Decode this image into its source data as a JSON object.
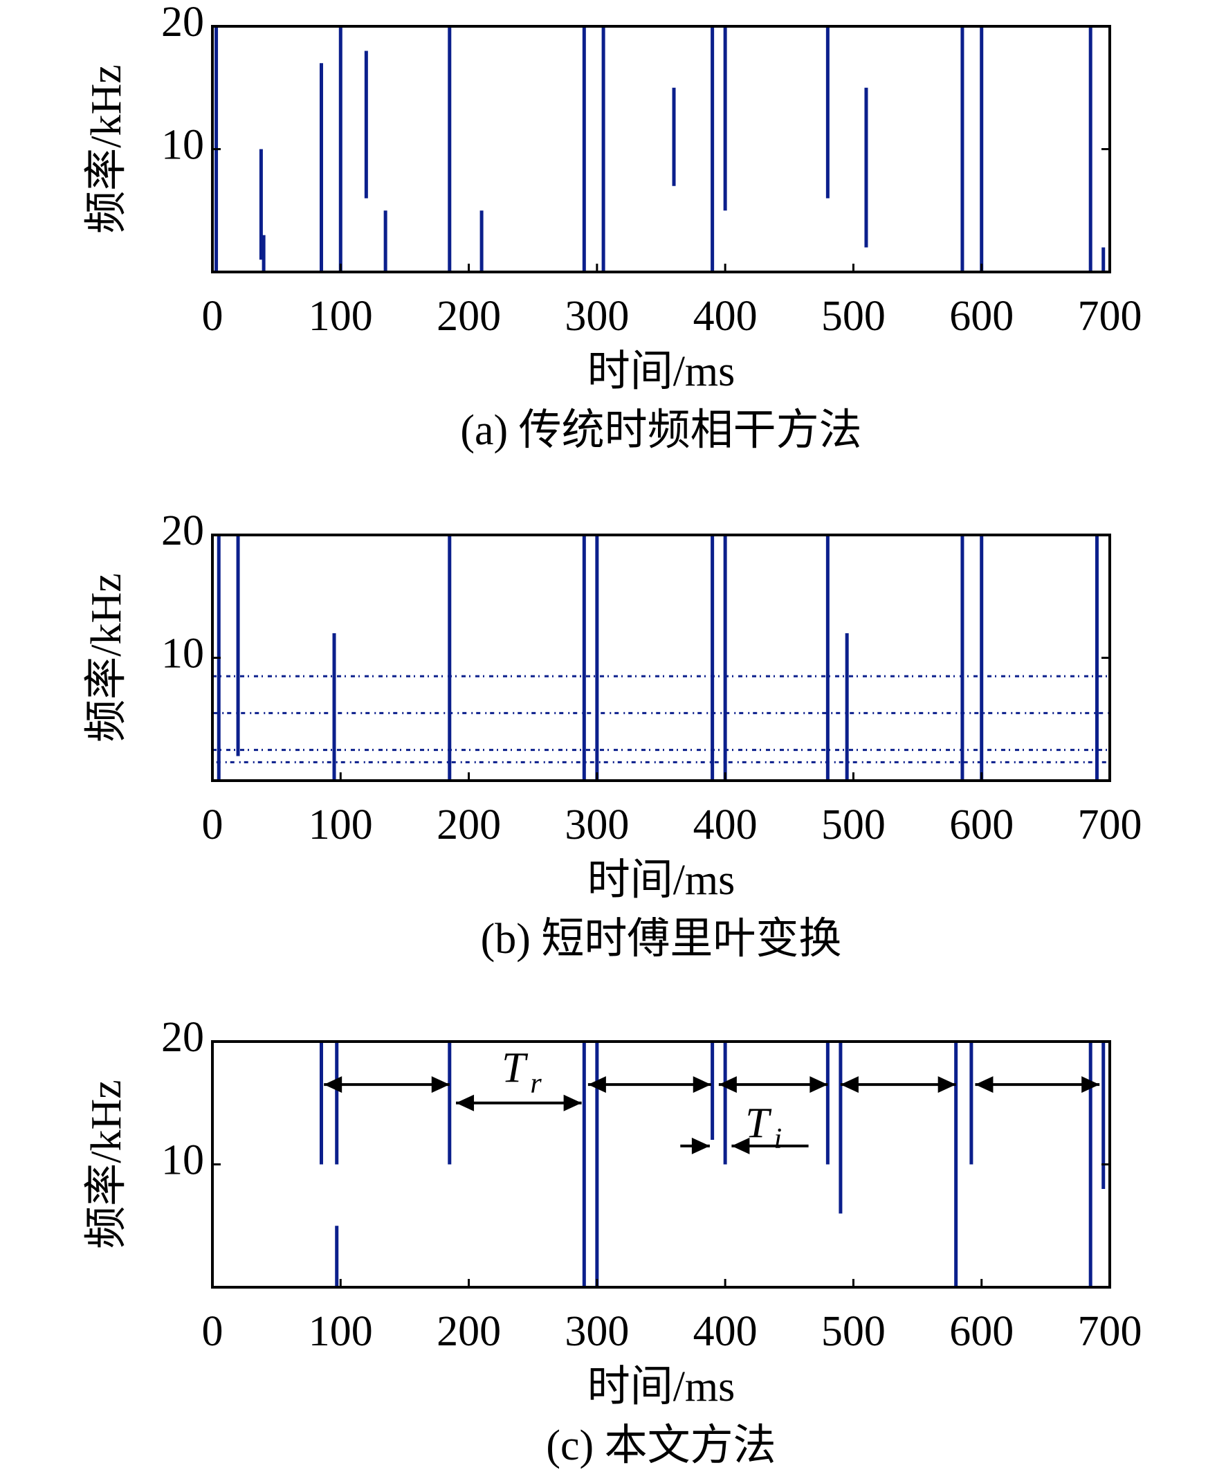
{
  "chart_data": [
    {
      "type": "spectrogram",
      "caption": "(a) 传统时频相干方法",
      "xlabel": "时间/ms",
      "ylabel": "频率/kHz",
      "xlim": [
        0,
        700
      ],
      "ylim": [
        0,
        20
      ],
      "xticks": [
        0,
        100,
        200,
        300,
        400,
        500,
        600,
        700
      ],
      "yticks": [
        10,
        20
      ],
      "color": "#0b1f8c",
      "x": [
        3,
        38,
        40,
        85,
        100,
        120,
        135,
        185,
        210,
        290,
        305,
        360,
        390,
        400,
        480,
        510,
        585,
        600,
        685,
        695
      ],
      "ylow": [
        0,
        1,
        0,
        0,
        0,
        6,
        0,
        0,
        0,
        0,
        0,
        7,
        0,
        5,
        6,
        2,
        0,
        0,
        0,
        0
      ],
      "yhigh": [
        20,
        10,
        3,
        17,
        20,
        18,
        5,
        20,
        5,
        20,
        20,
        15,
        20,
        20,
        20,
        15,
        20,
        20,
        20,
        2
      ]
    },
    {
      "type": "spectrogram",
      "caption": "(b) 短时傅里叶变换",
      "xlabel": "时间/ms",
      "ylabel": "频率/kHz",
      "xlim": [
        0,
        700
      ],
      "ylim": [
        0,
        20
      ],
      "xticks": [
        0,
        100,
        200,
        300,
        400,
        500,
        600,
        700
      ],
      "yticks": [
        10,
        20
      ],
      "color": "#0b1f8c",
      "x": [
        5,
        20,
        95,
        185,
        290,
        300,
        390,
        400,
        480,
        495,
        585,
        600,
        690
      ],
      "ylow": [
        0,
        2,
        0,
        0,
        0,
        0,
        0,
        0,
        0,
        0,
        0,
        0,
        0
      ],
      "yhigh": [
        20,
        20,
        12,
        20,
        20,
        20,
        20,
        20,
        20,
        12,
        20,
        20,
        20
      ],
      "bands": [
        [
          5.5,
          8.5
        ],
        [
          1.5,
          2.5
        ]
      ]
    },
    {
      "type": "spectrogram",
      "caption": "(c) 本文方法",
      "xlabel": "时间/ms",
      "ylabel": "频率/kHz",
      "xlim": [
        0,
        700
      ],
      "ylim": [
        0,
        20
      ],
      "xticks": [
        0,
        100,
        200,
        300,
        400,
        500,
        600,
        700
      ],
      "yticks": [
        10,
        20
      ],
      "color": "#0b1f8c",
      "x": [
        85,
        97,
        97,
        185,
        290,
        300,
        390,
        400,
        480,
        490,
        580,
        592,
        685,
        695
      ],
      "ylow": [
        10,
        0,
        10,
        10,
        0,
        0,
        12,
        10,
        10,
        6,
        0,
        10,
        0,
        8
      ],
      "yhigh": [
        20,
        5,
        20,
        20,
        20,
        20,
        20,
        20,
        20,
        20,
        20,
        20,
        20,
        20
      ],
      "arrows": [
        {
          "from": 87,
          "to": 185,
          "y": 16.5,
          "heads": 2
        },
        {
          "from": 190,
          "to": 288,
          "y": 15,
          "heads": 2
        },
        {
          "from": 293,
          "to": 389,
          "y": 16.5,
          "heads": 2
        },
        {
          "from": 395,
          "to": 480,
          "y": 16.5,
          "heads": 2
        },
        {
          "from": 490,
          "to": 580,
          "y": 16.5,
          "heads": 2
        },
        {
          "from": 595,
          "to": 692,
          "y": 16.5,
          "heads": 2
        },
        {
          "from": 365,
          "to": 388,
          "y": 11.5,
          "heads": 1
        },
        {
          "from": 465,
          "to": 405,
          "y": 11.5,
          "heads": 1
        }
      ],
      "annotations": [
        {
          "text": "T",
          "sub": "r",
          "x": 235,
          "y": 17.5
        },
        {
          "text": "T",
          "sub": "i",
          "x": 425,
          "y": 13
        }
      ]
    }
  ]
}
